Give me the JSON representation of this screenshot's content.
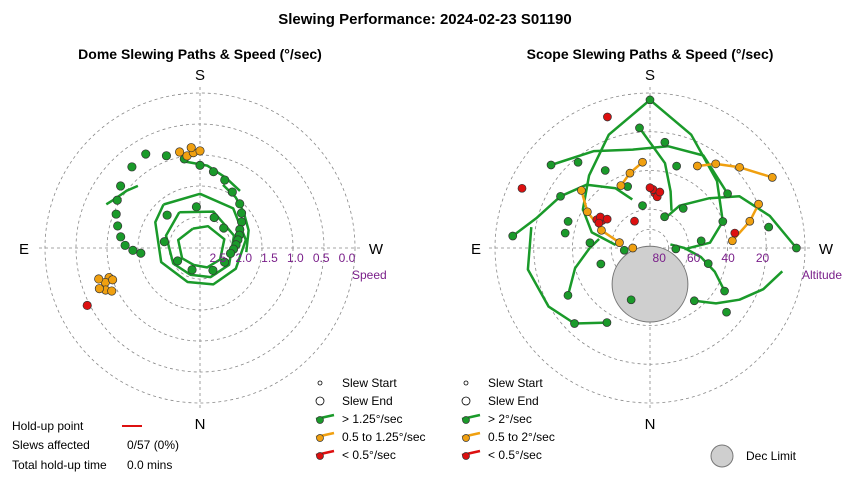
{
  "title": "Slewing Performance: 2024-02-23 S01190",
  "colors": {
    "fast": "#1a9a2a",
    "medium": "#f0a010",
    "slow": "#dd1010",
    "grid": "#888888",
    "radial_label": "#7a1f8a",
    "dec_limit_fill": "#cfcfcf"
  },
  "summary": {
    "holdup_label": "Hold-up point",
    "slews_affected_label": "Slews affected",
    "slews_affected_value": "0/57 (0%)",
    "total_holdup_label": "Total hold-up time",
    "total_holdup_value": "0.0 mins"
  },
  "chart_data": [
    {
      "type": "scatter",
      "projection": "polar",
      "title": "Dome Slewing Paths & Speed (°/sec)",
      "compass": {
        "top": "S",
        "bottom": "N",
        "left": "E",
        "right": "W"
      },
      "radial_axis_title": "Speed",
      "radial_ticks": [
        "2.5",
        "2.0",
        "1.5",
        "1.0",
        "0.5",
        "0.0"
      ],
      "radial_tick_values": [
        2.5,
        2.0,
        1.5,
        1.0,
        0.5,
        0.0
      ],
      "radial_range": [
        0.0,
        3.0
      ],
      "radial_direction": "decreasing outward",
      "grid": true,
      "legend": {
        "entries": [
          "Slew Start",
          "Slew End",
          "> 1.25°/sec",
          "0.5 to 1.25°/sec",
          "< 0.5°/sec"
        ]
      },
      "series": [
        {
          "name": "> 1.25°/sec",
          "color": "#1a9a2a",
          "points": [
            [
              85,
              1.85
            ],
            [
              88,
              1.7
            ],
            [
              92,
              1.55
            ],
            [
              98,
              1.45
            ],
            [
              105,
              1.35
            ],
            [
              112,
              1.25
            ],
            [
              120,
              1.15
            ],
            [
              128,
              1.05
            ],
            [
              140,
              0.95
            ],
            [
              150,
              0.9
            ],
            [
              160,
              1.1
            ],
            [
              170,
              1.25
            ],
            [
              180,
              1.4
            ],
            [
              190,
              1.5
            ],
            [
              200,
              1.6
            ],
            [
              210,
              1.75
            ],
            [
              222,
              1.85
            ],
            [
              230,
              1.95
            ],
            [
              238,
              2.05
            ],
            [
              245,
              2.15
            ],
            [
              252,
              2.2
            ],
            [
              258,
              2.25
            ],
            [
              265,
              2.3
            ],
            [
              272,
              2.35
            ],
            [
              280,
              2.4
            ],
            [
              300,
              2.45
            ],
            [
              330,
              2.5
            ],
            [
              20,
              2.55
            ],
            [
              60,
              2.5
            ],
            [
              100,
              2.3
            ],
            [
              135,
              2.1
            ],
            [
              175,
              2.2
            ],
            [
              205,
              2.35
            ],
            [
              230,
              2.4
            ]
          ]
        },
        {
          "name": "0.5 to 1.25°/sec",
          "color": "#f0a010",
          "points": [
            [
              172,
              1.2
            ],
            [
              176,
              1.15
            ],
            [
              168,
              1.1
            ],
            [
              175,
              1.05
            ],
            [
              180,
              1.12
            ],
            [
              72,
              1.15
            ],
            [
              70,
              1.05
            ],
            [
              66,
              1.0
            ],
            [
              73,
              0.95
            ],
            [
              68,
              0.9
            ],
            [
              64,
              1.1
            ],
            [
              70,
              1.2
            ]
          ]
        },
        {
          "name": "< 0.5°/sec",
          "color": "#dd1010",
          "points": [
            [
              63,
              0.55
            ]
          ]
        }
      ]
    },
    {
      "type": "scatter",
      "projection": "polar",
      "title": "Scope Slewing Paths & Speed (°/sec)",
      "compass": {
        "top": "S",
        "bottom": "N",
        "left": "E",
        "right": "W"
      },
      "radial_axis_title": "Altitude",
      "radial_ticks": [
        "80",
        "60",
        "40",
        "20"
      ],
      "radial_tick_values": [
        80,
        60,
        40,
        20
      ],
      "radial_range": [
        90,
        0
      ],
      "grid": true,
      "dec_limit": {
        "azimuth": 0,
        "altitude": 69,
        "radius_deg": 22
      },
      "legend": {
        "entries": [
          "Slew Start",
          "Slew End",
          "> 2°/sec",
          "0.5 to 2°/sec",
          "< 0.5°/sec",
          "Dec Limit"
        ]
      },
      "series": [
        {
          "name": "> 2°/sec",
          "color": "#1a9a2a",
          "points": [
            [
              180,
              4
            ],
            [
              175,
              20
            ],
            [
              188,
              28
            ],
            [
              198,
              40
            ],
            [
              160,
              52
            ],
            [
              150,
              38
            ],
            [
              140,
              25
            ],
            [
              120,
              30
            ],
            [
              108,
              40
            ],
            [
              95,
              55
            ],
            [
              85,
              75
            ],
            [
              72,
              60
            ],
            [
              60,
              35
            ],
            [
              45,
              28
            ],
            [
              30,
              40
            ],
            [
              20,
              58
            ],
            [
              235,
              35
            ],
            [
              250,
              45
            ],
            [
              262,
              60
            ],
            [
              272,
              75
            ],
            [
              285,
              55
            ],
            [
              300,
              40
            ],
            [
              310,
              32
            ],
            [
              320,
              50
            ],
            [
              220,
              60
            ],
            [
              205,
              70
            ],
            [
              95,
              10
            ],
            [
              270,
              5
            ],
            [
              260,
              20
            ],
            [
              170,
              65
            ],
            [
              100,
              40
            ],
            [
              130,
              15
            ]
          ]
        },
        {
          "name": "0.5 to 2°/sec",
          "color": "#f0a010",
          "points": [
            [
              240,
              8
            ],
            [
              228,
              20
            ],
            [
              218,
              28
            ],
            [
              210,
              35
            ],
            [
              130,
              38
            ],
            [
              120,
              48
            ],
            [
              110,
              60
            ],
            [
              100,
              72
            ],
            [
              90,
              80
            ],
            [
              175,
              40
            ],
            [
              165,
              45
            ],
            [
              155,
              50
            ],
            [
              248,
              22
            ],
            [
              255,
              30
            ],
            [
              265,
              42
            ]
          ]
        },
        {
          "name": "< 0.5°/sec",
          "color": "#dd1010",
          "points": [
            [
              185,
              58
            ],
            [
              183,
              56
            ],
            [
              188,
              60
            ],
            [
              180,
              55
            ],
            [
              190,
              57
            ],
            [
              120,
              58
            ],
            [
              118,
              55
            ],
            [
              122,
              56
            ],
            [
              116,
              57
            ],
            [
              124,
              60
            ],
            [
              162,
              10
            ],
            [
              115,
              8
            ],
            [
              260,
              40
            ],
            [
              150,
              72
            ]
          ]
        }
      ]
    }
  ]
}
